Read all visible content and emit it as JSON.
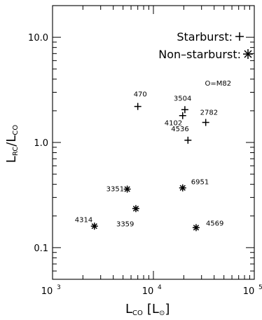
{
  "chart_data": {
    "type": "scatter",
    "x_scale": "log",
    "y_scale": "log",
    "xlim": [
      1000,
      100000
    ],
    "ylim": [
      0.05,
      20
    ],
    "x_tick_labels": [
      {
        "value": 1000,
        "base": "10",
        "exp": "3"
      },
      {
        "value": 10000,
        "base": "10",
        "exp": "4"
      },
      {
        "value": 100000,
        "base": "10",
        "exp": "5"
      }
    ],
    "y_tick_labels": [
      {
        "value": 10,
        "label": "10.0"
      },
      {
        "value": 1,
        "label": "1.0"
      },
      {
        "value": 0.1,
        "label": "0.1"
      }
    ],
    "xlabel": {
      "main": "L",
      "sub": "CO",
      "unit_open": "[L",
      "unit_close": "]",
      "unit_sub": "⊙"
    },
    "ylabel": {
      "num": "L",
      "num_sub": "RC",
      "slash": "/",
      "den": "L",
      "den_sub": "CO"
    },
    "legend": [
      {
        "label": "Starburst:",
        "marker": "plus"
      },
      {
        "label": "Non–starburst:",
        "marker": "asterisk"
      }
    ],
    "series": [
      {
        "name": "Starburst",
        "marker": "plus",
        "points": [
          {
            "label": "470",
            "x": 7000,
            "y": 2.2
          },
          {
            "label": "3504",
            "x": 20500,
            "y": 2.05
          },
          {
            "label": "4102",
            "x": 19500,
            "y": 1.8
          },
          {
            "label": "2782",
            "x": 33000,
            "y": 1.55
          },
          {
            "label": "4536",
            "x": 22000,
            "y": 1.05
          }
        ]
      },
      {
        "name": "Non-starburst",
        "marker": "asterisk",
        "points": [
          {
            "label": "3351",
            "x": 5500,
            "y": 0.36
          },
          {
            "label": "6951",
            "x": 19500,
            "y": 0.37
          },
          {
            "label": "3359",
            "x": 6700,
            "y": 0.235
          },
          {
            "label": "4314",
            "x": 2600,
            "y": 0.16
          },
          {
            "label": "4569",
            "x": 26500,
            "y": 0.155
          }
        ]
      }
    ],
    "annotations": [
      {
        "text": "O=M82",
        "x": 38000,
        "y": 3.7
      }
    ],
    "grid": false
  }
}
